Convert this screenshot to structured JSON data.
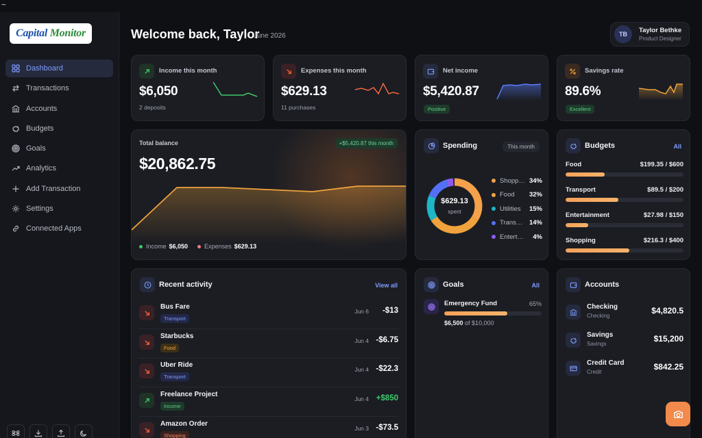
{
  "terminal_tilde": "~",
  "brand": {
    "logo_part1": "Capital",
    "logo_part2": "Monitor"
  },
  "nav": [
    {
      "label": "Dashboard",
      "icon": "grid-icon",
      "active": true
    },
    {
      "label": "Transactions",
      "icon": "arrows-swap-icon"
    },
    {
      "label": "Accounts",
      "icon": "bank-icon"
    },
    {
      "label": "Budgets",
      "icon": "piggy-bank-icon"
    },
    {
      "label": "Goals",
      "icon": "target-icon"
    },
    {
      "label": "Analytics",
      "icon": "trend-icon"
    },
    {
      "label": "Add Transaction",
      "icon": "plus-icon"
    },
    {
      "label": "Settings",
      "icon": "gear-icon"
    },
    {
      "label": "Connected Apps",
      "icon": "link-icon"
    }
  ],
  "header": {
    "welcome": "Welcome back, Taylor",
    "month": "June 2026"
  },
  "user": {
    "initials": "TB",
    "name": "Taylor Bethke",
    "role": "Product Designer"
  },
  "stats": {
    "income": {
      "label": "Income this month",
      "value": "$6,050",
      "sub": "2 deposits",
      "color": "#3fca6b"
    },
    "expenses": {
      "label": "Expenses this month",
      "value": "$629.13",
      "sub": "11 purchases",
      "color": "#f2663f"
    },
    "net": {
      "label": "Net income",
      "value": "$5,420.87",
      "pill": "Positive",
      "color": "#5b7cff"
    },
    "savings": {
      "label": "Savings rate",
      "value": "89.6%",
      "pill": "Excellent",
      "color": "#f0a33c"
    }
  },
  "balance": {
    "label": "Total balance",
    "value": "$20,862.75",
    "badge": "+$5,420.87 this month",
    "legend_income_label": "Income",
    "legend_income_value": "$6,050",
    "legend_expenses_label": "Expenses",
    "legend_expenses_value": "$629.13"
  },
  "spending": {
    "title": "Spending",
    "period": "This month",
    "total": "$629.13",
    "total_sub": "spent",
    "items": [
      {
        "name": "Shopping",
        "pct": "34%",
        "color": "#f5a04a"
      },
      {
        "name": "Food",
        "pct": "32%",
        "color": "#f0a33c"
      },
      {
        "name": "Utilities",
        "pct": "15%",
        "color": "#1fb7c7"
      },
      {
        "name": "Transport",
        "pct": "14%",
        "color": "#5470f5"
      },
      {
        "name": "Entertainment",
        "pct": "4%",
        "color": "#8c5cf2"
      }
    ]
  },
  "budgets": {
    "title": "Budgets",
    "link": "All",
    "items": [
      {
        "name": "Food",
        "amount": "$199.35 / $600",
        "fraction": 0.33
      },
      {
        "name": "Transport",
        "amount": "$89.5 / $200",
        "fraction": 0.45
      },
      {
        "name": "Entertainment",
        "amount": "$27.98 / $150",
        "fraction": 0.19
      },
      {
        "name": "Shopping",
        "amount": "$216.3 / $400",
        "fraction": 0.54
      }
    ]
  },
  "activity": {
    "title": "Recent activity",
    "link": "View all",
    "items": [
      {
        "name": "Bus Fare",
        "category": "Transport",
        "date": "Jun 6",
        "amount": "-$13",
        "kind": "expense",
        "cat_kind": "transport"
      },
      {
        "name": "Starbucks",
        "category": "Food",
        "date": "Jun 4",
        "amount": "-$6.75",
        "kind": "expense",
        "cat_kind": "food"
      },
      {
        "name": "Uber Ride",
        "category": "Transport",
        "date": "Jun 4",
        "amount": "-$22.3",
        "kind": "expense",
        "cat_kind": "transport"
      },
      {
        "name": "Freelance Project",
        "category": "Income",
        "date": "Jun 4",
        "amount": "+$850",
        "kind": "income",
        "cat_kind": "income"
      },
      {
        "name": "Amazon Order",
        "category": "Shopping",
        "date": "Jun 3",
        "amount": "-$73.5",
        "kind": "expense",
        "cat_kind": "shopping"
      }
    ]
  },
  "goals": {
    "title": "Goals",
    "link": "All",
    "items": [
      {
        "name": "Emergency Fund",
        "pct": "65%",
        "fraction": 0.65,
        "saved": "$6,500",
        "of_text": "of $10,000"
      }
    ]
  },
  "accounts": {
    "title": "Accounts",
    "items": [
      {
        "name": "Checking",
        "type": "Checking",
        "balance": "$4,820.5",
        "icon": "bank-icon"
      },
      {
        "name": "Savings",
        "type": "Savings",
        "balance": "$15,200",
        "icon": "piggy-bank-icon"
      },
      {
        "name": "Credit Card",
        "type": "Credit",
        "balance": "$842.25",
        "icon": "credit-card-icon"
      }
    ]
  }
}
